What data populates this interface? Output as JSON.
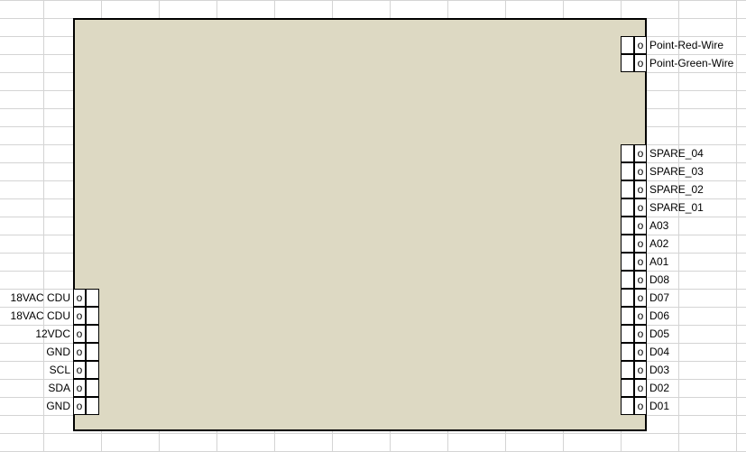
{
  "right_top_pins": [
    {
      "label": "Point-Red-Wire",
      "marker": "o"
    },
    {
      "label": "Point-Green-Wire",
      "marker": "o"
    }
  ],
  "right_pins": [
    {
      "label": "SPARE_04",
      "marker": "o"
    },
    {
      "label": "SPARE_03",
      "marker": "o"
    },
    {
      "label": "SPARE_02",
      "marker": "o"
    },
    {
      "label": "SPARE_01",
      "marker": "o"
    },
    {
      "label": "A03",
      "marker": "o"
    },
    {
      "label": "A02",
      "marker": "o"
    },
    {
      "label": "A01",
      "marker": "o"
    },
    {
      "label": "D08",
      "marker": "o"
    },
    {
      "label": "D07",
      "marker": "o"
    },
    {
      "label": "D06",
      "marker": "o"
    },
    {
      "label": "D05",
      "marker": "o"
    },
    {
      "label": "D04",
      "marker": "o"
    },
    {
      "label": "D03",
      "marker": "o"
    },
    {
      "label": "D02",
      "marker": "o"
    },
    {
      "label": "D01",
      "marker": "o"
    }
  ],
  "left_pins": [
    {
      "label": "18VAC CDU",
      "marker": "o"
    },
    {
      "label": "18VAC CDU",
      "marker": "o"
    },
    {
      "label": "12VDC",
      "marker": "o"
    },
    {
      "label": "GND",
      "marker": "o"
    },
    {
      "label": "SCL",
      "marker": "o"
    },
    {
      "label": "SDA",
      "marker": "o"
    },
    {
      "label": "GND",
      "marker": "o"
    }
  ],
  "colors": {
    "board_fill": "#ddd9c3",
    "grid_line": "#d4d4d4",
    "outline": "#000000"
  }
}
